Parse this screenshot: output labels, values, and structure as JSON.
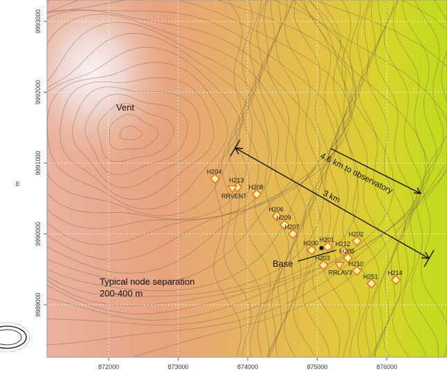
{
  "map": {
    "y_unit": "m",
    "x_ticks": [
      "872000",
      "873000",
      "874000",
      "875000",
      "876000"
    ],
    "y_ticks": [
      "9993000",
      "9992000",
      "9991000",
      "9990000",
      "9989000"
    ],
    "annotations": {
      "vent": "Vent",
      "base": "Base",
      "observatory": "4.6 km to observatory",
      "distance": "3 km",
      "separation_line1": "Typical node separation",
      "separation_line2": "200-400 m"
    },
    "stations": [
      {
        "id": "H204",
        "x": 873530,
        "y": 9990780
      },
      {
        "id": "H213",
        "x": 873850,
        "y": 9990660
      },
      {
        "id": "H208",
        "x": 874130,
        "y": 9990560
      },
      {
        "id": "H206",
        "x": 874420,
        "y": 9990250
      },
      {
        "id": "H209",
        "x": 874530,
        "y": 9990130
      },
      {
        "id": "H207",
        "x": 874650,
        "y": 9990000
      },
      {
        "id": "H201",
        "x": 875150,
        "y": 9989820
      },
      {
        "id": "H202",
        "x": 875570,
        "y": 9989900
      },
      {
        "id": "H200",
        "x": 874920,
        "y": 9989770
      },
      {
        "id": "H212",
        "x": 875380,
        "y": 9989760
      },
      {
        "id": "H205",
        "x": 875440,
        "y": 9989660
      },
      {
        "id": "H203",
        "x": 875090,
        "y": 9989560
      },
      {
        "id": "RRLAV3",
        "x": 875320,
        "y": 9989560,
        "marker": "triangle"
      },
      {
        "id": "H210",
        "x": 875570,
        "y": 9989480
      },
      {
        "id": "H251",
        "x": 875780,
        "y": 9989300
      },
      {
        "id": "H214",
        "x": 876130,
        "y": 9989350
      },
      {
        "id": "RRVENT",
        "x": 873780,
        "y": 9990640,
        "marker": "triangle"
      }
    ],
    "base_point": {
      "x": 875060,
      "y": 9989800
    },
    "vent_point": {
      "x": 872300,
      "y": 9991420
    },
    "colors": {
      "summit": "#f3e4e2",
      "upper_slope": "#e8a27c",
      "mid_slope": "#e6b45e",
      "lower_slope": "#e0cb3a",
      "lowland": "#c8dc1a",
      "station_fill": "#fff0a0",
      "station_stroke": "#e0701e",
      "contour": "#6e5a4c"
    }
  }
}
